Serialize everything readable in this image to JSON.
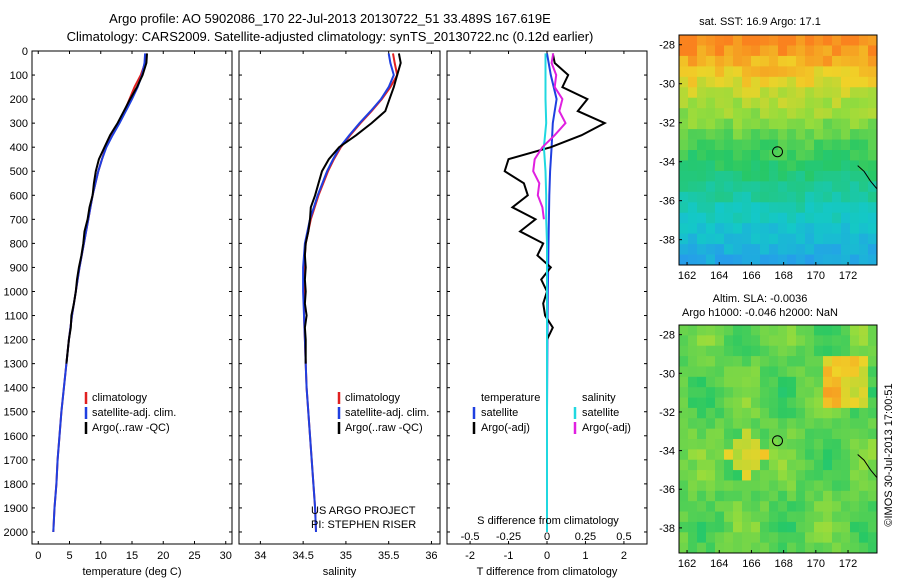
{
  "header": {
    "line1": "Argo profile: AO 5902086_170 22-Jul-2013 20130722_51 33.489S 167.619E",
    "line2": "Climatology: CARS2009. Satellite-adjusted climatology: synTS_20130722.nc (0.12d earlier)"
  },
  "colors": {
    "climatology": "#e02020",
    "satellite_adj": "#1f3fe0",
    "argo": "#000000",
    "salinity_satellite": "#20d8e0",
    "salinity_argo": "#e020e0"
  },
  "chart_data": [
    {
      "type": "line",
      "panel": "temperature",
      "xlabel": "temperature (deg C)",
      "ylabel": "",
      "xlim": [
        -1,
        31
      ],
      "ylim": [
        2050,
        0
      ],
      "xticks": [
        "0",
        "5",
        "10",
        "15",
        "20",
        "25",
        "30"
      ],
      "yticks": [
        "0",
        "100",
        "200",
        "300",
        "400",
        "500",
        "600",
        "700",
        "800",
        "900",
        "1000",
        "1100",
        "1200",
        "1300",
        "1400",
        "1500",
        "1600",
        "1700",
        "1800",
        "1900",
        "2000"
      ],
      "legend": [
        "climatology",
        "satellite-adj. clim.",
        "Argo(..raw -QC)"
      ],
      "series": [
        {
          "name": "climatology",
          "y": [
            10,
            50,
            100,
            150,
            200,
            250,
            300,
            350,
            400,
            450,
            500,
            600,
            700,
            800,
            900,
            1000,
            1100,
            1200,
            1300,
            1400,
            1500,
            1600,
            1700,
            1800,
            1900,
            2000
          ],
          "x": [
            17.2,
            17.1,
            16.4,
            15.4,
            14.6,
            13.8,
            12.9,
            11.8,
            10.8,
            10.2,
            9.6,
            8.7,
            8.0,
            7.3,
            6.6,
            6.0,
            5.4,
            4.9,
            4.5,
            4.1,
            3.7,
            3.4,
            3.1,
            2.9,
            2.6,
            2.4
          ]
        },
        {
          "name": "satellite-adj. clim.",
          "y": [
            10,
            50,
            100,
            150,
            200,
            250,
            300,
            350,
            400,
            450,
            500,
            600,
            700,
            800,
            900,
            1000,
            1100,
            1200,
            1300,
            1400,
            1500,
            1600,
            1700,
            1800,
            1900,
            2000
          ],
          "x": [
            17.1,
            17.0,
            16.6,
            15.9,
            15.0,
            14.0,
            13.0,
            11.9,
            10.9,
            10.2,
            9.6,
            8.7,
            8.0,
            7.3,
            6.6,
            6.0,
            5.4,
            4.9,
            4.5,
            4.1,
            3.7,
            3.4,
            3.1,
            2.9,
            2.6,
            2.4
          ]
        },
        {
          "name": "Argo(..raw -QC)",
          "y": [
            10,
            50,
            100,
            150,
            200,
            250,
            300,
            350,
            400,
            450,
            500,
            550,
            600,
            650,
            700,
            750,
            800,
            850,
            900,
            950,
            1000,
            1050,
            1100,
            1150,
            1200,
            1300
          ],
          "x": [
            17.4,
            17.3,
            16.7,
            15.8,
            14.7,
            13.7,
            12.7,
            11.5,
            10.6,
            9.7,
            9.2,
            8.9,
            8.7,
            8.2,
            7.9,
            7.4,
            7.2,
            6.9,
            6.5,
            6.2,
            6.0,
            5.7,
            5.3,
            5.2,
            4.9,
            4.5
          ]
        }
      ]
    },
    {
      "type": "line",
      "panel": "salinity",
      "xlabel": "salinity",
      "ylabel": "",
      "xlim": [
        33.75,
        36.1
      ],
      "ylim": [
        2050,
        0
      ],
      "xticks": [
        "34",
        "34.5",
        "35",
        "35.5",
        "36"
      ],
      "legend": [
        "climatology",
        "satellite-adj. clim.",
        "Argo(..raw -QC)"
      ],
      "series": [
        {
          "name": "climatology",
          "y": [
            10,
            50,
            100,
            150,
            200,
            250,
            300,
            350,
            400,
            450,
            500,
            600,
            700,
            800,
            900,
            1000,
            1100,
            1200,
            1300,
            1400,
            1500,
            1600,
            1700,
            1800,
            1900,
            2000
          ],
          "x": [
            35.55,
            35.57,
            35.6,
            35.52,
            35.42,
            35.3,
            35.17,
            35.05,
            34.94,
            34.86,
            34.79,
            34.68,
            34.59,
            34.53,
            34.51,
            34.51,
            34.51,
            34.52,
            34.53,
            34.54,
            34.56,
            34.58,
            34.6,
            34.62,
            34.64,
            34.65
          ]
        },
        {
          "name": "satellite-adj. clim.",
          "y": [
            10,
            50,
            100,
            150,
            200,
            250,
            300,
            350,
            400,
            450,
            500,
            600,
            700,
            800,
            900,
            1000,
            1100,
            1200,
            1300,
            1400,
            1500,
            1600,
            1700,
            1800,
            1900,
            2000
          ],
          "x": [
            35.5,
            35.52,
            35.56,
            35.5,
            35.41,
            35.29,
            35.16,
            35.04,
            34.93,
            34.85,
            34.78,
            34.67,
            34.58,
            34.52,
            34.5,
            34.5,
            34.51,
            34.52,
            34.53,
            34.54,
            34.56,
            34.58,
            34.6,
            34.62,
            34.64,
            34.65
          ]
        },
        {
          "name": "Argo(..raw -QC)",
          "y": [
            10,
            50,
            100,
            150,
            200,
            250,
            300,
            350,
            400,
            450,
            500,
            550,
            600,
            650,
            700,
            750,
            800,
            850,
            900,
            950,
            1000,
            1050,
            1100,
            1150,
            1200,
            1300
          ],
          "x": [
            35.62,
            35.64,
            35.6,
            35.56,
            35.51,
            35.46,
            35.3,
            35.12,
            34.92,
            34.8,
            34.72,
            34.68,
            34.64,
            34.59,
            34.58,
            34.56,
            34.53,
            34.52,
            34.53,
            34.52,
            34.53,
            34.52,
            34.54,
            34.52,
            34.53,
            34.53
          ]
        }
      ]
    },
    {
      "type": "line",
      "panel": "difference",
      "xlabel": "T difference from climatology",
      "xlabel_top": "S difference from climatology",
      "xlim": [
        -2.6,
        2.6
      ],
      "ylim": [
        2050,
        0
      ],
      "xticks": [
        "-2",
        "-1",
        "0",
        "1",
        "2"
      ],
      "xticks_top": [
        "-0.5",
        "-0.25",
        "0",
        "0.25",
        "0.5"
      ],
      "legend": [
        "temperature",
        "satellite",
        "Argo(-adj)",
        "salinity",
        "satellite",
        "Argo(-adj)"
      ],
      "series": [
        {
          "name": "temperature satellite",
          "y": [
            10,
            100,
            200,
            300,
            400,
            500,
            600,
            700,
            800,
            900,
            1000,
            1200,
            1500,
            1800,
            2000
          ],
          "x": [
            0.0,
            0.1,
            0.25,
            0.15,
            0.12,
            0.08,
            0.06,
            0.05,
            0.04,
            0.03,
            0.02,
            0.01,
            0.0,
            0.0,
            0.0
          ]
        },
        {
          "name": "temperature Argo(-adj)",
          "y": [
            10,
            50,
            100,
            150,
            200,
            250,
            300,
            350,
            400,
            450,
            500,
            550,
            600,
            650,
            700,
            750,
            800,
            850,
            900,
            950,
            1000,
            1050,
            1100,
            1150,
            1200,
            1300
          ],
          "x": [
            0.15,
            0.2,
            0.55,
            0.4,
            1.05,
            0.8,
            1.5,
            0.9,
            0.1,
            -1.0,
            -1.1,
            -0.6,
            -0.5,
            -0.9,
            -0.3,
            -0.7,
            -0.1,
            -0.25,
            0.1,
            -0.15,
            0.0,
            -0.1,
            -0.05,
            0.15,
            0.0,
            0.0
          ]
        },
        {
          "name": "salinity satellite",
          "y": [
            10,
            100,
            200,
            300,
            400,
            500,
            600,
            700,
            800,
            900,
            1000,
            1200,
            1500,
            1800,
            2000
          ],
          "x": [
            -0.01,
            -0.01,
            -0.01,
            -0.005,
            -0.02,
            -0.01,
            -0.005,
            -0.005,
            0.0,
            0.0,
            0.0,
            0.0,
            0.0,
            0.0,
            0.0
          ]
        },
        {
          "name": "salinity Argo(-adj)",
          "y": [
            10,
            50,
            100,
            150,
            200,
            250,
            300,
            350,
            400,
            450,
            500,
            550,
            600,
            650,
            700
          ],
          "x": [
            0.04,
            0.03,
            0.06,
            0.05,
            0.1,
            0.08,
            0.12,
            0.05,
            -0.03,
            -0.08,
            -0.09,
            -0.05,
            -0.06,
            -0.03,
            -0.02
          ]
        }
      ]
    },
    {
      "type": "heatmap",
      "panel": "sst_map",
      "title": "sat. SST: 16.9 Argo: 17.1",
      "xlim": [
        161.5,
        173.8
      ],
      "ylim": [
        -39.3,
        -27.5
      ],
      "xticks": [
        "162",
        "164",
        "166",
        "168",
        "170",
        "172"
      ],
      "yticks": [
        "-28",
        "-30",
        "-32",
        "-34",
        "-36",
        "-38"
      ],
      "argo_position": {
        "lon": 167.619,
        "lat": -33.489
      }
    },
    {
      "type": "heatmap",
      "panel": "sla_map",
      "title": "Altim. SLA: -0.0036",
      "subtitle": "Argo h1000: -0.046 h2000: NaN",
      "xlim": [
        161.5,
        173.8
      ],
      "ylim": [
        -39.3,
        -27.5
      ],
      "xticks": [
        "162",
        "164",
        "166",
        "168",
        "170",
        "172"
      ],
      "yticks": [
        "-28",
        "-30",
        "-32",
        "-34",
        "-36",
        "-38"
      ],
      "argo_position": {
        "lon": 167.619,
        "lat": -33.489
      }
    }
  ],
  "annotations": {
    "project": "US ARGO PROJECT",
    "pi": "PI: STEPHEN RISER",
    "stamp": "©IMOS 30-Jul-2013 17:00:51"
  }
}
